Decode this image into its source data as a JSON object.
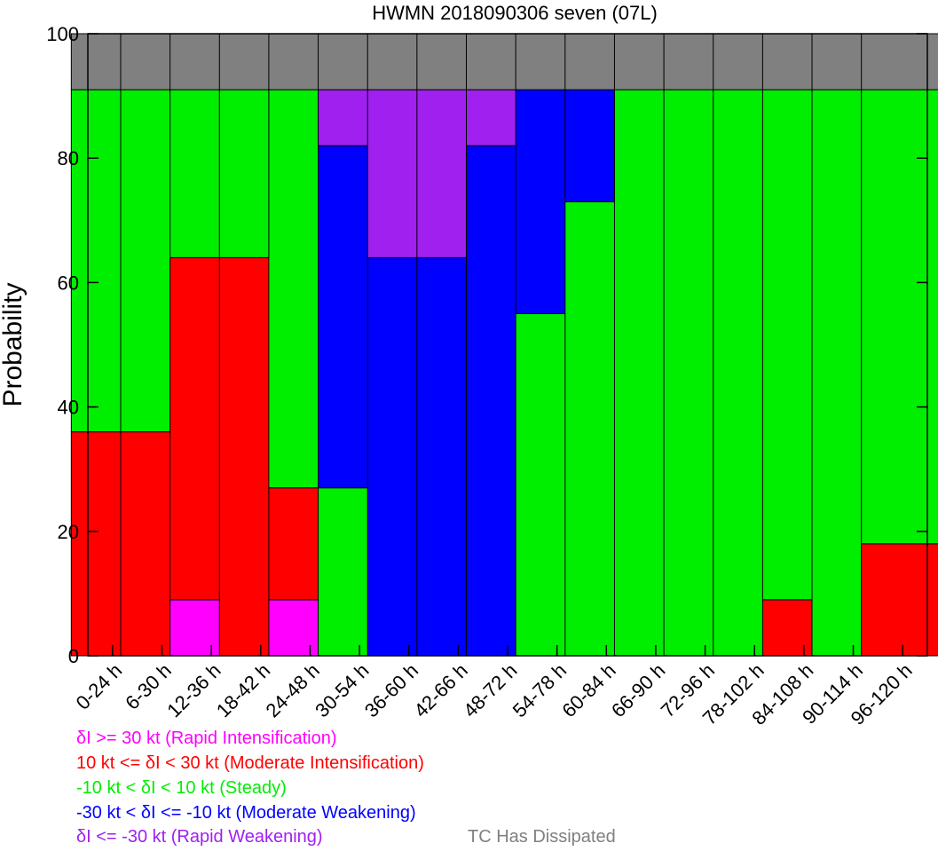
{
  "chart_data": {
    "type": "bar",
    "stacked": true,
    "title": "HWMN 2018090306 seven (07L)",
    "xlabel": "",
    "ylabel": "Probability",
    "ylim": [
      0,
      100
    ],
    "yticks": [
      0,
      20,
      40,
      60,
      80,
      100
    ],
    "grid": false,
    "categories": [
      "0-24 h",
      "6-30 h",
      "12-36 h",
      "18-42 h",
      "24-48 h",
      "30-54 h",
      "36-60 h",
      "42-66 h",
      "48-72 h",
      "54-78 h",
      "60-84 h",
      "66-90 h",
      "72-96 h",
      "78-102 h",
      "84-108 h",
      "90-114 h",
      "96-120 h"
    ],
    "series": [
      {
        "name": "δI >= 30 kt (Rapid Intensification)",
        "color": "#ff00ff",
        "values": [
          0,
          0,
          9,
          0,
          9,
          0,
          0,
          0,
          0,
          0,
          0,
          0,
          0,
          0,
          0,
          0,
          0
        ]
      },
      {
        "name": "10 kt <= δI < 30 kt (Moderate Intensification)",
        "color": "#ff0000",
        "values": [
          36,
          36,
          55,
          64,
          18,
          0,
          0,
          0,
          0,
          0,
          0,
          0,
          0,
          0,
          9,
          0,
          18
        ]
      },
      {
        "name": "-10 kt < δI < 10 kt (Steady)",
        "color": "#00ee00",
        "values": [
          55,
          55,
          27,
          27,
          64,
          27,
          0,
          0,
          0,
          55,
          73,
          91,
          91,
          91,
          82,
          91,
          73
        ]
      },
      {
        "name": "-30 kt < δI <= -10 kt (Moderate Weakening)",
        "color": "#0000ff",
        "values": [
          0,
          0,
          0,
          0,
          0,
          55,
          64,
          64,
          82,
          36,
          18,
          0,
          0,
          0,
          0,
          0,
          0
        ]
      },
      {
        "name": "δI <= -30 kt (Rapid Weakening)",
        "color": "#a020f0",
        "values": [
          0,
          0,
          0,
          0,
          0,
          9,
          27,
          27,
          9,
          0,
          0,
          0,
          0,
          0,
          0,
          0,
          0
        ]
      },
      {
        "name": "TC Has Dissipated",
        "color": "#808080",
        "values": [
          9,
          9,
          9,
          9,
          9,
          9,
          9,
          9,
          9,
          9,
          9,
          9,
          9,
          9,
          9,
          9,
          9
        ]
      }
    ],
    "legend": [
      {
        "text": "δI >= 30 kt (Rapid Intensification)",
        "color": "#ff00ff"
      },
      {
        "text": "10 kt <= δI < 30 kt (Moderate Intensification)",
        "color": "#ff0000"
      },
      {
        "text": "-10 kt < δI < 10 kt (Steady)",
        "color": "#00ee00"
      },
      {
        "text": "-30 kt < δI <= -10 kt (Moderate Weakening)",
        "color": "#0000ff"
      },
      {
        "text": "δI <= -30 kt (Rapid Weakening)",
        "color": "#a020f0"
      },
      {
        "text": "TC Has Dissipated",
        "color": "#808080"
      }
    ],
    "legend_placement": "bottom"
  }
}
